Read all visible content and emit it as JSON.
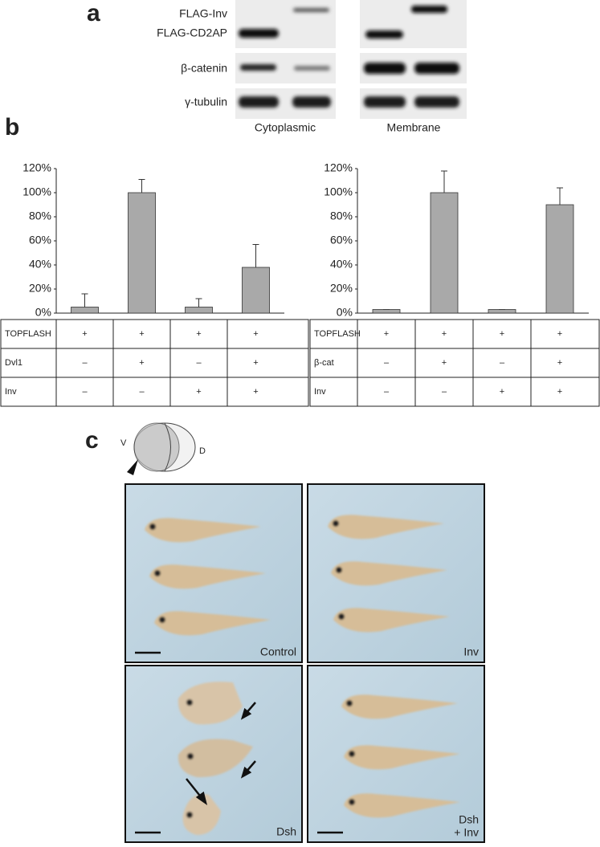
{
  "panel_a": {
    "label": "a",
    "rows": [
      "FLAG-Inv",
      "FLAG-CD2AP",
      "β-catenin",
      "γ-tubulin"
    ],
    "columns": [
      "Cytoplasmic",
      "Membrane"
    ]
  },
  "panel_b": {
    "label": "b"
  },
  "chart_data": [
    {
      "type": "bar",
      "values": [
        5,
        100,
        5,
        38
      ],
      "errors": [
        11,
        11,
        7,
        19
      ],
      "color": "#a9a9a9",
      "ylim": [
        0,
        120
      ],
      "yticks": [
        {
          "value": 0,
          "label": "0%"
        },
        {
          "value": 20,
          "label": "20%"
        },
        {
          "value": 40,
          "label": "40%"
        },
        {
          "value": 60,
          "label": "60%"
        },
        {
          "value": 80,
          "label": "80%"
        },
        {
          "value": 100,
          "label": "100%"
        },
        {
          "value": 120,
          "label": "120%"
        }
      ],
      "table": [
        [
          "TOPFLASH",
          "+",
          "+",
          "+",
          "+"
        ],
        [
          "Dvl1",
          "–",
          "+",
          "–",
          "+"
        ],
        [
          "Inv",
          "–",
          "–",
          "+",
          "+"
        ]
      ]
    },
    {
      "type": "bar",
      "values": [
        3,
        100,
        3,
        90
      ],
      "errors": [
        0,
        18,
        0,
        14
      ],
      "color": "#a9a9a9",
      "ylim": [
        0,
        120
      ],
      "yticks": [
        {
          "value": 0,
          "label": "0%"
        },
        {
          "value": 20,
          "label": "20%"
        },
        {
          "value": 40,
          "label": "40%"
        },
        {
          "value": 60,
          "label": "60%"
        },
        {
          "value": 80,
          "label": "80%"
        },
        {
          "value": 100,
          "label": "100%"
        },
        {
          "value": 120,
          "label": "120%"
        }
      ],
      "table": [
        [
          "TOPFLASH",
          "+",
          "+",
          "+",
          "+"
        ],
        [
          "β-cat",
          "–",
          "+",
          "–",
          "+"
        ],
        [
          "Inv",
          "–",
          "–",
          "+",
          "+"
        ]
      ]
    }
  ],
  "panel_c": {
    "label": "c",
    "axis_labels": [
      "V",
      "D"
    ],
    "images": [
      "Control",
      "Inv",
      "Dsh",
      "Dsh",
      "+ Inv"
    ]
  }
}
